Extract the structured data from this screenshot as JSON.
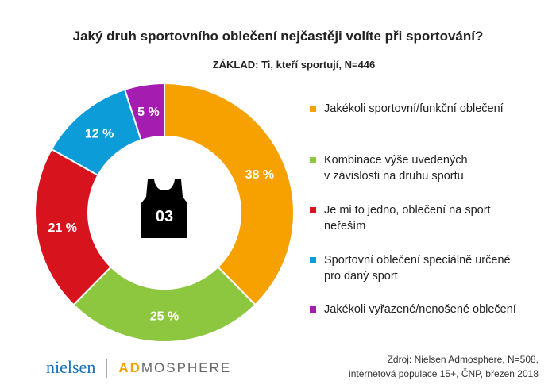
{
  "chart_data": {
    "type": "pie",
    "donut": true,
    "title": "Jaký druh sportovního oblečení nejčastěji volíte při sportování?",
    "subtitle": "ZÁKLAD: Ti, kteří sportují, N=446",
    "categories": [
      "Jakékoli sportovní/funkční oblečení",
      "Kombinace výše uvedených v závislosti na druhu sportu",
      "Je mi to jedno, oblečení na sport neřeším",
      "Sportovní oblečení speciálně určené pro daný sport",
      "Jakékoli vyřazené/nenošené oblečení"
    ],
    "values": [
      38,
      25,
      21,
      12,
      5
    ],
    "labels": [
      "38 %",
      "25 %",
      "21 %",
      "12 %",
      "5 %"
    ],
    "colors": [
      "#F7A100",
      "#8DC63F",
      "#D7141E",
      "#0C9CD8",
      "#A51DB0"
    ],
    "legend_lines": [
      [
        "Jakékoli sportovní/funkční oblečení"
      ],
      [
        "Kombinace výše uvedených",
        "v závislosti na druhu sportu"
      ],
      [
        "Je mi to jedno, oblečení na sport",
        "neřeším"
      ],
      [
        "Sportovní oblečení speciálně určené",
        "pro daný sport"
      ],
      [
        "Jakékoli vyřazené/nenošené oblečení"
      ]
    ],
    "legend_position": "right"
  },
  "center_icon": {
    "name": "jersey-icon",
    "number": "03"
  },
  "source": {
    "line1": "Zdroj: Nielsen Admosphere, N=508,",
    "line2": "internetová populace 15+, ČNP, březen 2018"
  },
  "logo": {
    "nielsen": "nielsen",
    "ad": "AD",
    "mosphere": "MOSPHERE"
  }
}
